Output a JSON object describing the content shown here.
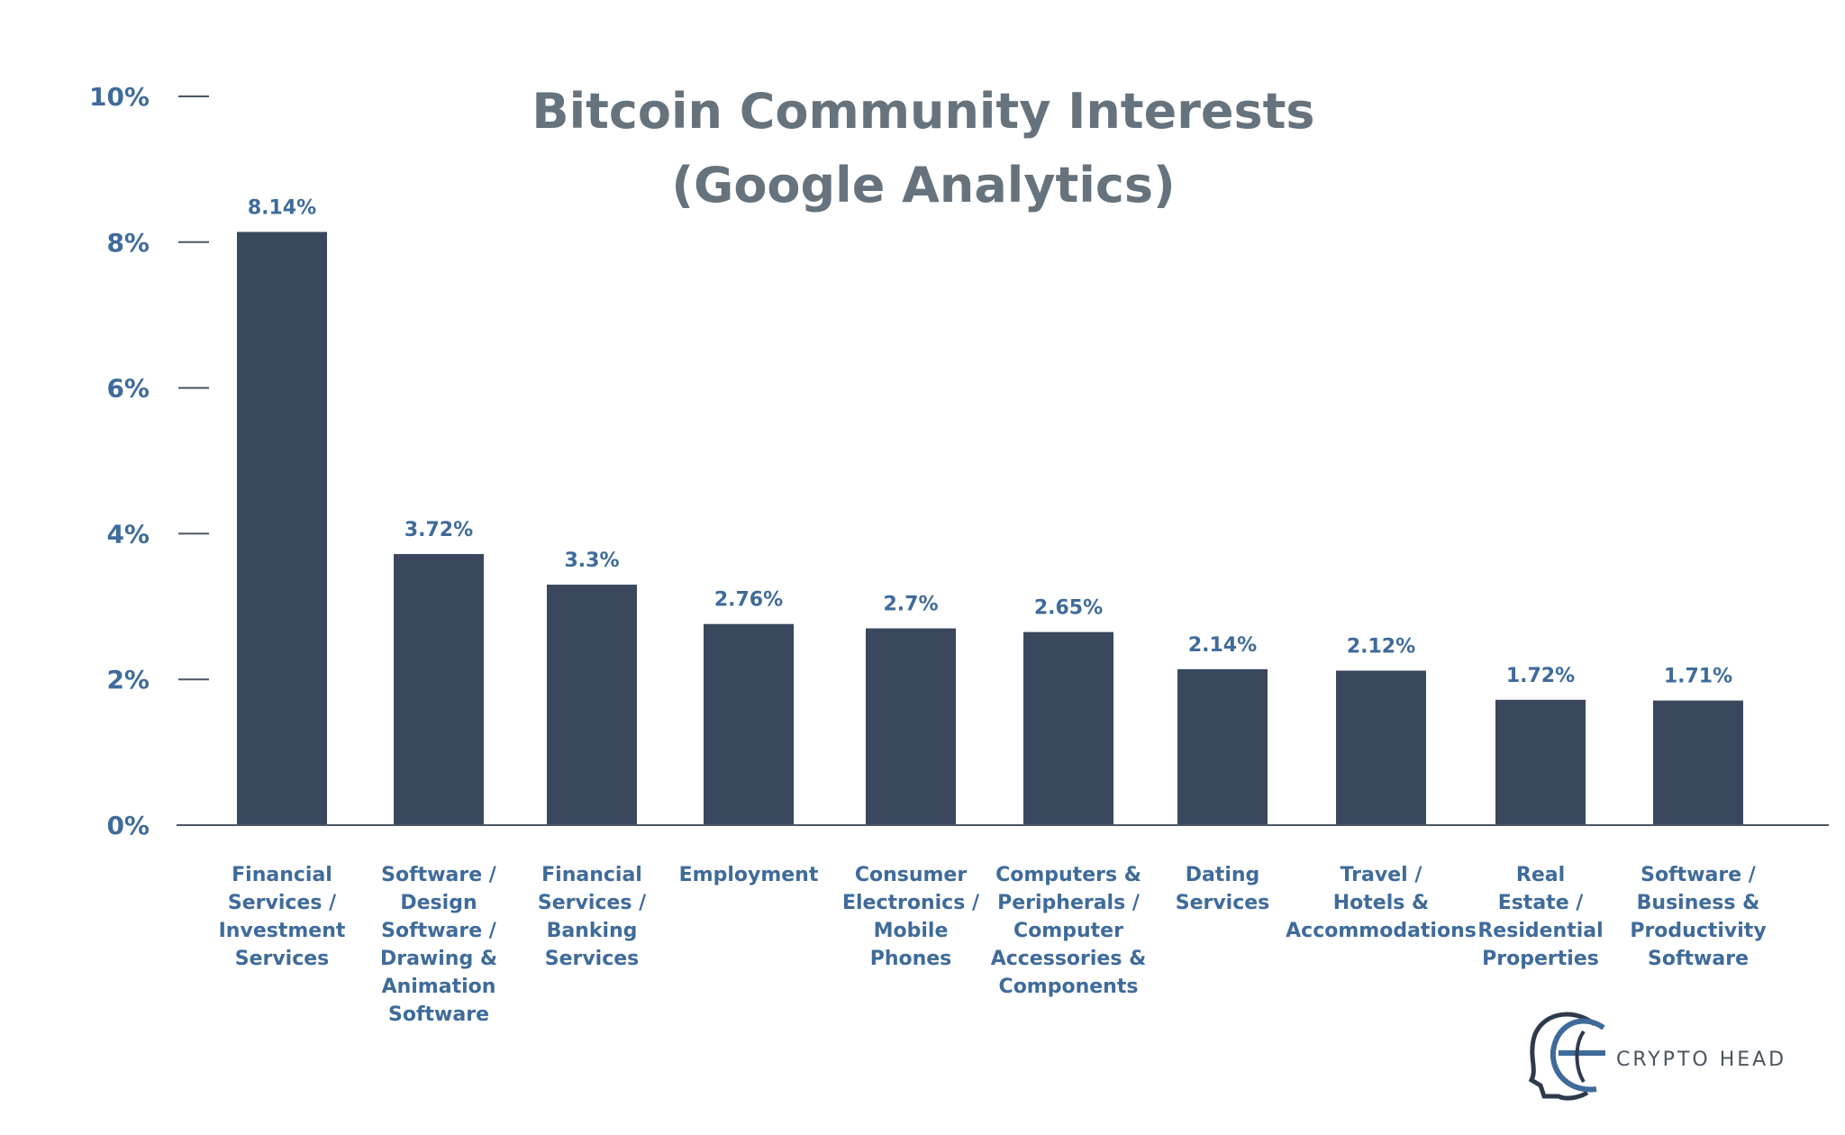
{
  "chart_data": {
    "type": "bar",
    "title": [
      "Bitcoin Community Interests",
      "(Google Analytics)"
    ],
    "xlabel": "",
    "ylabel": "",
    "ylim": [
      0,
      10
    ],
    "yticks": [
      "0%",
      "2%",
      "4%",
      "6%",
      "8%",
      "10%"
    ],
    "grid": false,
    "categories": [
      [
        "Financial",
        "Services /",
        "Investment",
        "Services"
      ],
      [
        "Software /",
        "Design",
        "Software /",
        "Drawing &",
        "Animation",
        "Software"
      ],
      [
        "Financial",
        "Services /",
        "Banking",
        "Services"
      ],
      [
        "Employment"
      ],
      [
        "Consumer",
        "Electronics /",
        "Mobile",
        "Phones"
      ],
      [
        "Computers &",
        "Peripherals /",
        "Computer",
        "Accessories &",
        "Components"
      ],
      [
        "Dating",
        "Services"
      ],
      [
        "Travel /",
        "Hotels &",
        "Accommodations"
      ],
      [
        "Real",
        "Estate /",
        "Residential",
        "Properties"
      ],
      [
        "Software /",
        "Business &",
        "Productivity",
        "Software"
      ]
    ],
    "values": [
      8.14,
      3.72,
      3.3,
      2.76,
      2.7,
      2.65,
      2.14,
      2.12,
      1.72,
      1.71
    ],
    "data_labels": [
      "8.14%",
      "3.72%",
      "3.3%",
      "2.76%",
      "2.7%",
      "2.65%",
      "2.14%",
      "2.12%",
      "1.72%",
      "1.71%"
    ],
    "colors": {
      "bar": "#3b475d",
      "axis": "#4b5563",
      "label": "#3f6b9a",
      "title": "#66737d"
    }
  },
  "brand": {
    "name": "CRYPTO HEAD",
    "logo_icon": "crypto-head-logo-icon"
  }
}
